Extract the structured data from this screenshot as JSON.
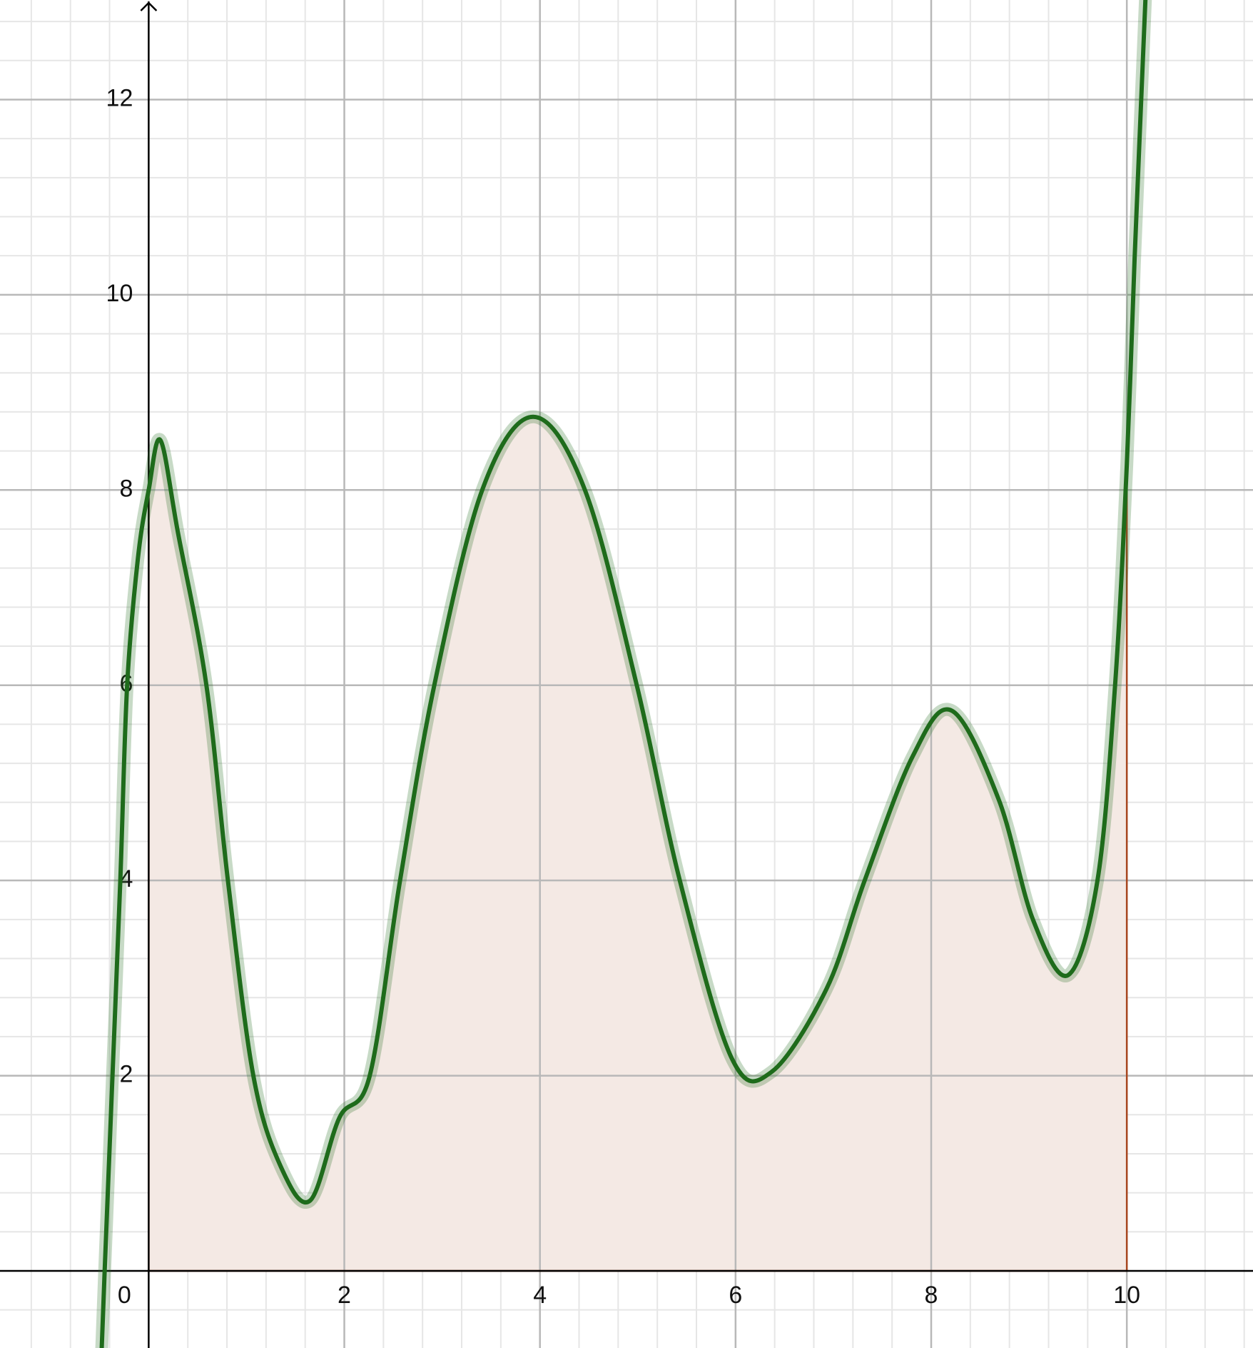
{
  "chart_data": {
    "type": "line",
    "x": [
      -0.48,
      -0.45,
      -0.37,
      -0.29,
      -0.22,
      -0.11,
      0,
      0.12,
      0.3,
      0.59,
      0.81,
      1.07,
      1.35,
      1.65,
      1.95,
      2.26,
      2.57,
      2.92,
      3.41,
      3.93,
      4.46,
      4.99,
      5.43,
      5.96,
      6.37,
      6.93,
      7.32,
      7.81,
      8.21,
      8.69,
      9.04,
      9.4,
      9.7,
      9.88,
      10,
      10.08,
      10.19
    ],
    "series": [
      {
        "color": "#1e6b1b",
        "values": [
          -0.79,
          0,
          2,
          4,
          6,
          7.3,
          8.0,
          8.51,
          7.56,
          6,
          4,
          2,
          1.07,
          0.72,
          1.57,
          2,
          4,
          6,
          8,
          8.75,
          8,
          6,
          4,
          2.18,
          2.04,
          2.89,
          4,
          5.27,
          5.74,
          4.83,
          3.6,
          3.03,
          4,
          6,
          8.26,
          10.38,
          13.02
        ]
      }
    ],
    "shade_range": [
      0,
      10
    ],
    "shade_color": "#f4e9e4",
    "shade_border": "#a8461f",
    "xlim": [
      -1.52,
      11.29
    ],
    "ylim": [
      -0.79,
      13.02
    ],
    "xticks": [
      0,
      2,
      4,
      6,
      8,
      10
    ],
    "yticks": [
      2,
      4,
      6,
      8,
      10,
      12
    ],
    "grid": true,
    "minor_grid_step": 0.4
  }
}
